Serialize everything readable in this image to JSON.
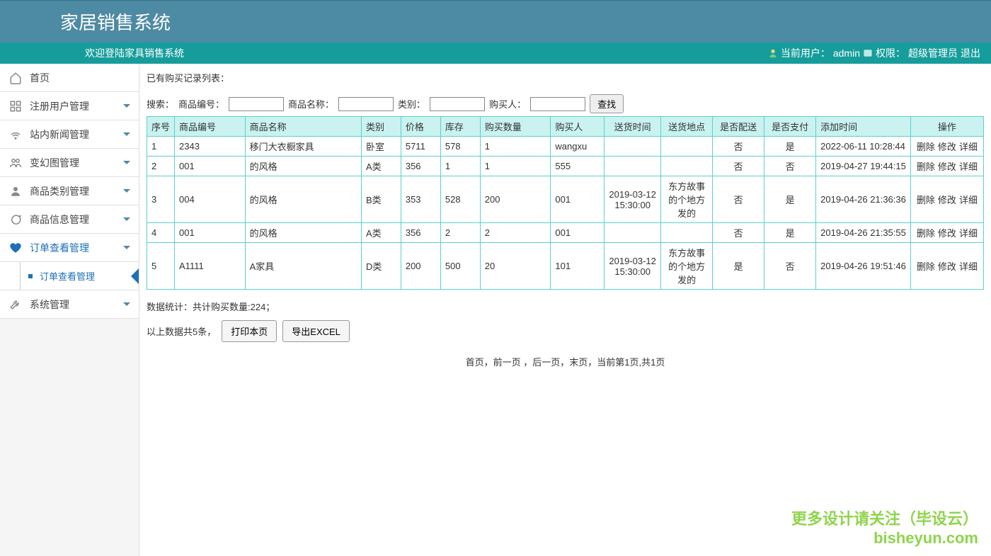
{
  "header": {
    "title": "家居销售系统",
    "welcome": "欢迎登陆家具销售系统",
    "current_user_label": "当前用户：",
    "current_user": "admin",
    "permission_label": "权限：",
    "permission": "超级管理员",
    "logout": "退出"
  },
  "sidebar": {
    "items": [
      {
        "label": "首页",
        "icon": "home"
      },
      {
        "label": "注册用户管理",
        "icon": "grid",
        "expandable": true
      },
      {
        "label": "站内新闻管理",
        "icon": "wifi",
        "expandable": true
      },
      {
        "label": "变幻图管理",
        "icon": "users",
        "expandable": true
      },
      {
        "label": "商品类别管理",
        "icon": "person",
        "expandable": true
      },
      {
        "label": "商品信息管理",
        "icon": "chat",
        "expandable": true
      },
      {
        "label": "订单查看管理",
        "icon": "heart",
        "expandable": true,
        "active": true,
        "children": [
          {
            "label": "订单查看管理",
            "selected": true
          }
        ]
      },
      {
        "label": "系统管理",
        "icon": "wrench",
        "expandable": true
      }
    ]
  },
  "content": {
    "list_title": "已有购买记录列表：",
    "search": {
      "label": "搜索：",
      "product_code_label": "商品编号：",
      "product_name_label": "商品名称：",
      "category_label": "类别：",
      "buyer_label": "购买人：",
      "search_btn": "查找"
    },
    "table": {
      "columns": [
        "序号",
        "商品编号",
        "商品名称",
        "类别",
        "价格",
        "库存",
        "购买数量",
        "购买人",
        "送货时间",
        "送货地点",
        "是否配送",
        "是否支付",
        "添加时间",
        "操作"
      ],
      "rows": [
        [
          "1",
          "2343",
          "移门大衣橱家具",
          "卧室",
          "5711",
          "578",
          "1",
          "wangxu",
          "",
          "",
          "否",
          "是",
          "2022-06-11 10:28:44"
        ],
        [
          "2",
          "001",
          "的风格",
          "A类",
          "356",
          "1",
          "1",
          "555",
          "",
          "",
          "否",
          "否",
          "2019-04-27 19:44:15"
        ],
        [
          "3",
          "004",
          "的风格",
          "B类",
          "353",
          "528",
          "200",
          "001",
          "2019-03-12 15:30:00",
          "东方故事的个地方发的",
          "否",
          "是",
          "2019-04-26 21:36:36"
        ],
        [
          "4",
          "001",
          "的风格",
          "A类",
          "356",
          "2",
          "2",
          "001",
          "",
          "",
          "否",
          "是",
          "2019-04-26 21:35:55"
        ],
        [
          "5",
          "A1111",
          "A家具",
          "D类",
          "200",
          "500",
          "20",
          "101",
          "2019-03-12 15:30:00",
          "东方故事的个地方发的",
          "是",
          "否",
          "2019-04-26 19:51:46"
        ]
      ],
      "center_cols": [
        8,
        9,
        10,
        11,
        13
      ],
      "actions": {
        "delete": "删除",
        "edit": "修改",
        "detail": "详细"
      }
    },
    "stats_prefix": "数据统计：共计购买数量:",
    "stats_count": "224",
    "stats_suffix": "；",
    "export": {
      "records_prefix": "以上数据共",
      "records_count": "5",
      "records_suffix": "条，",
      "print_btn": "打印本页",
      "excel_btn": "导出EXCEL"
    },
    "pagination": "首页，前一页 ，后一页，末页，当前第1页,共1页"
  },
  "watermark": {
    "line1": "更多设计请关注（毕设云）",
    "line2": "bisheyun.com"
  },
  "colors": {
    "header_bg": "#4d8aa3",
    "subheader_bg": "#169d9b",
    "table_border": "#5dd0cc",
    "table_header_bg": "#c9f2f0",
    "active_blue": "#1e6fb8",
    "watermark": "#8fd44b"
  }
}
